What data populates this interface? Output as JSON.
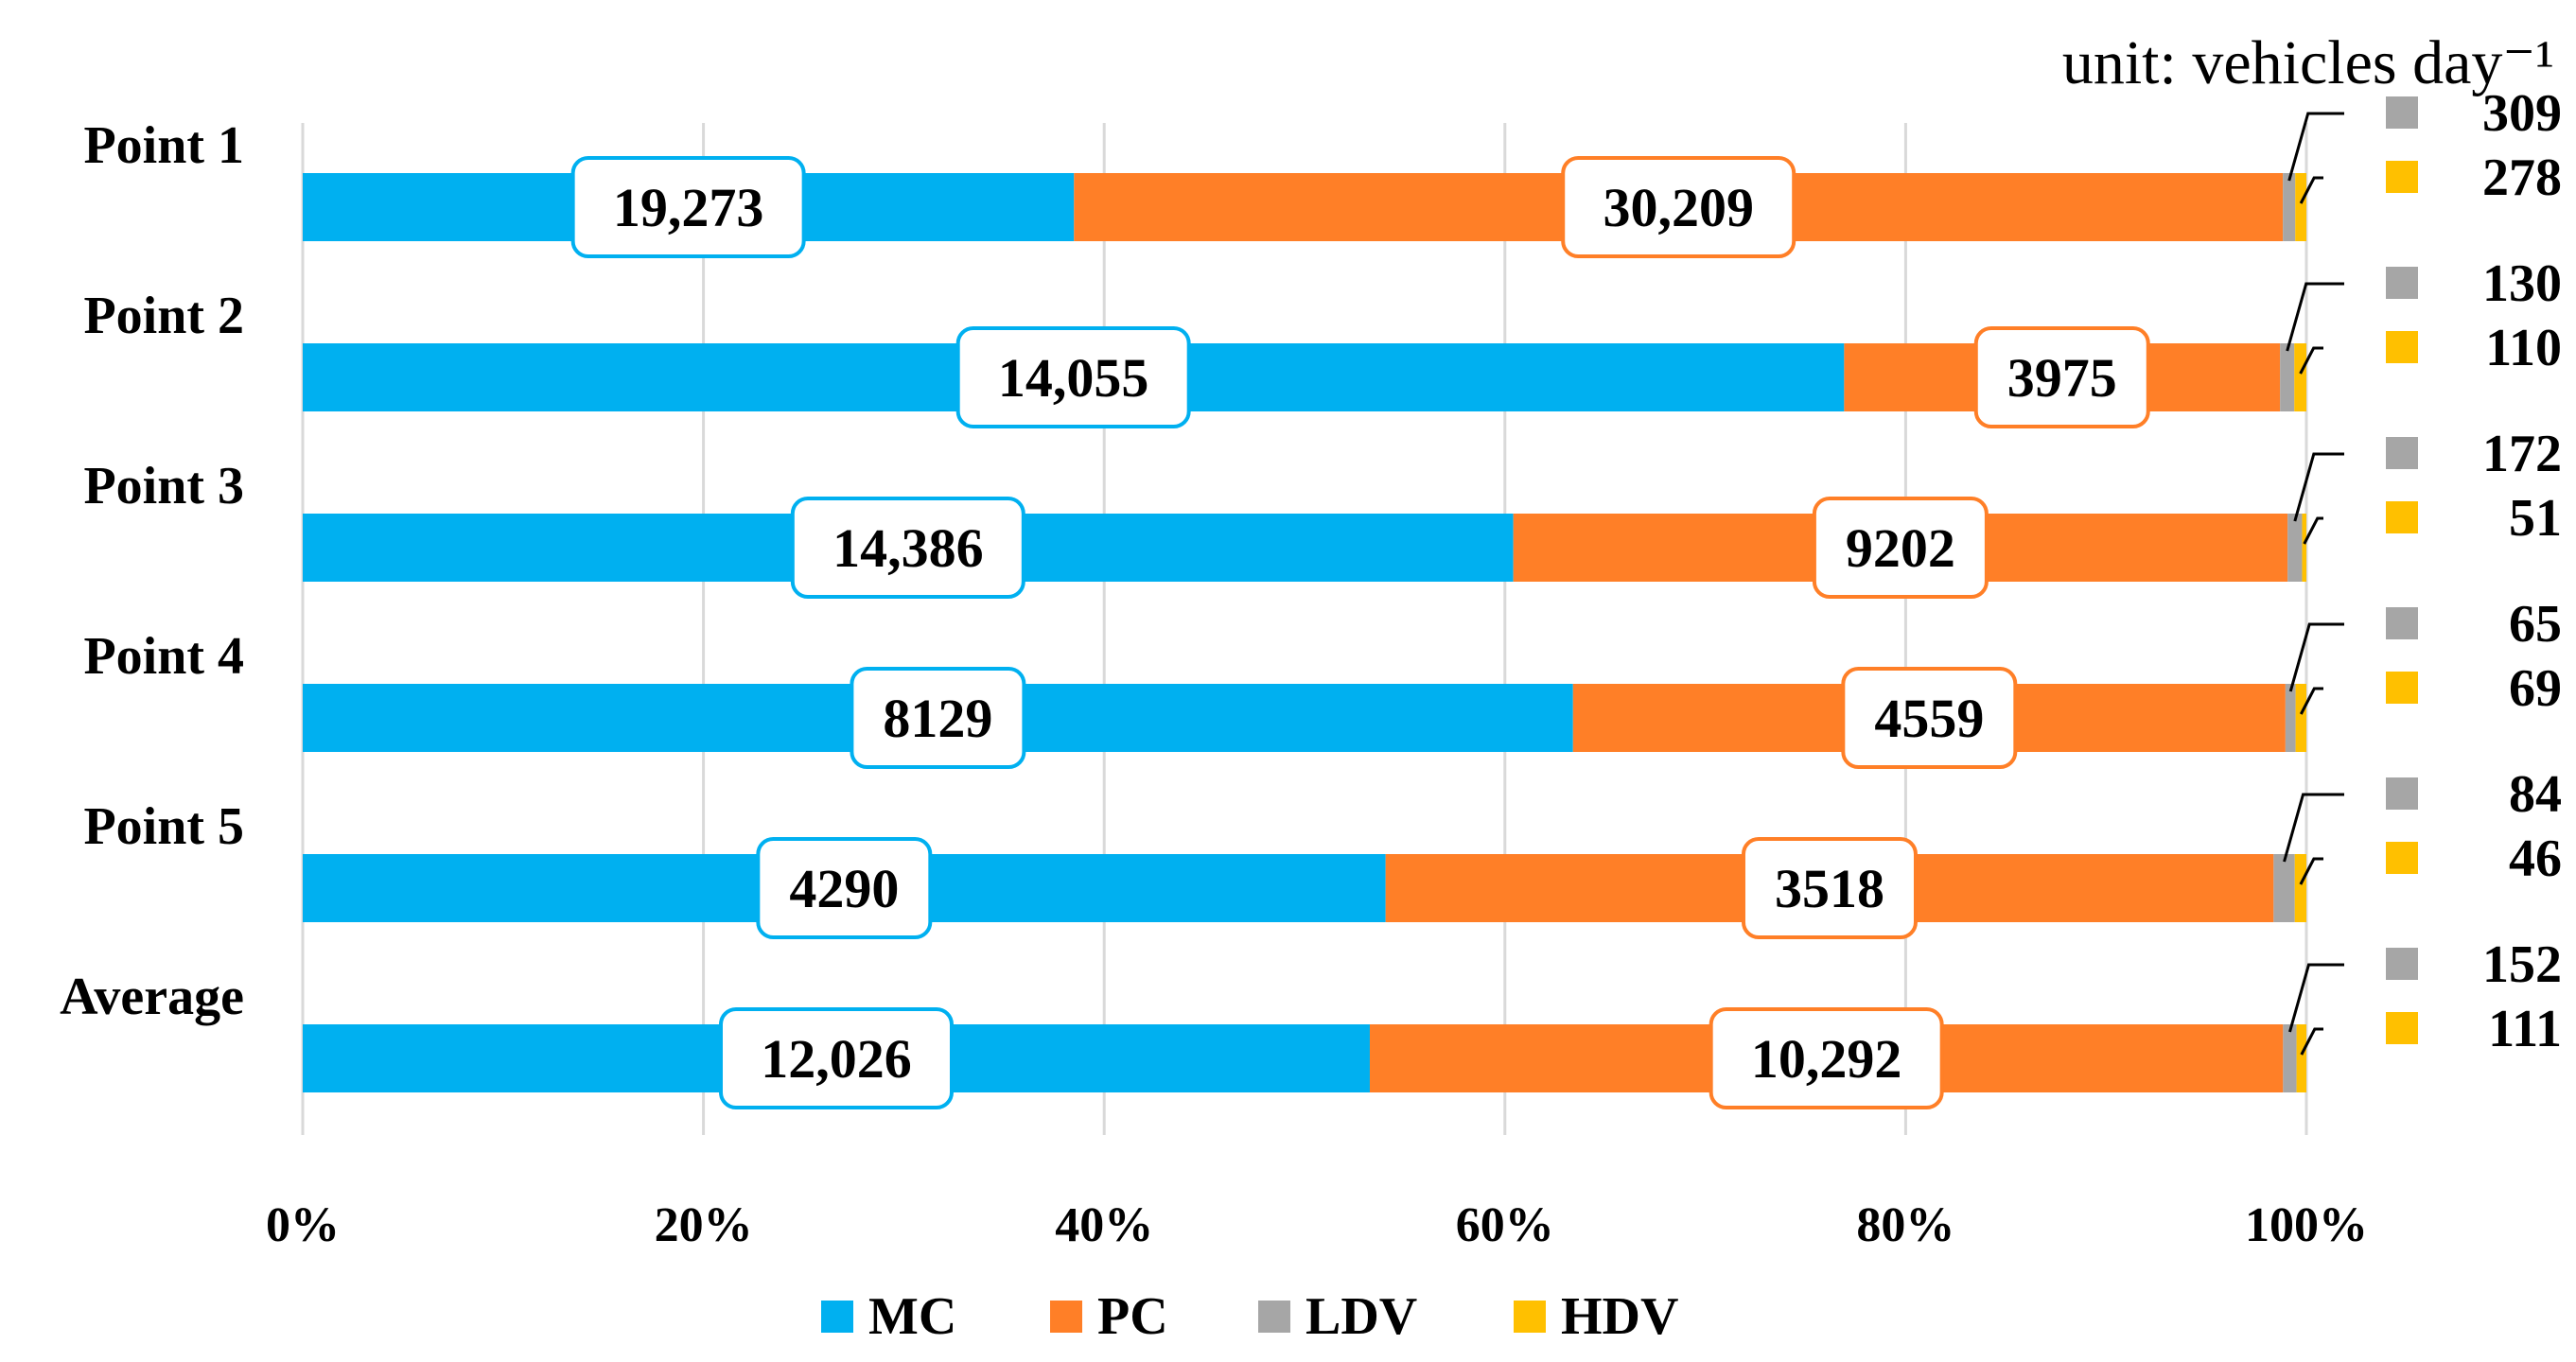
{
  "chart_data": {
    "type": "bar",
    "orientation": "horizontal",
    "stacked": true,
    "normalized": true,
    "unit_label": "unit: vehicles day⁻¹",
    "categories": [
      "Point 1",
      "Point 2",
      "Point 3",
      "Point 4",
      "Point 5",
      "Average"
    ],
    "series": [
      {
        "name": "MC",
        "color": "#00b0f0",
        "values": [
          19273,
          14055,
          14386,
          8129,
          4290,
          12026
        ],
        "labels": [
          "19,273",
          "14,055",
          "14,386",
          "8129",
          "4290",
          "12,026"
        ]
      },
      {
        "name": "PC",
        "color": "#ff7f27",
        "values": [
          30209,
          3975,
          9202,
          4559,
          3518,
          10292
        ],
        "labels": [
          "30,209",
          "3975",
          "9202",
          "4559",
          "3518",
          "10,292"
        ]
      },
      {
        "name": "LDV",
        "color": "#a6a6a6",
        "values": [
          309,
          130,
          172,
          65,
          84,
          152
        ],
        "labels": [
          "309",
          "130",
          "172",
          "65",
          "84",
          "152"
        ]
      },
      {
        "name": "HDV",
        "color": "#ffc000",
        "values": [
          278,
          110,
          51,
          69,
          46,
          111
        ],
        "labels": [
          "278",
          "110",
          "51",
          "69",
          "46",
          "111"
        ]
      }
    ],
    "x_ticks": [
      "0%",
      "20%",
      "40%",
      "60%",
      "80%",
      "100%"
    ],
    "xlim": [
      0,
      100
    ],
    "grid": true,
    "legend_position": "bottom"
  }
}
